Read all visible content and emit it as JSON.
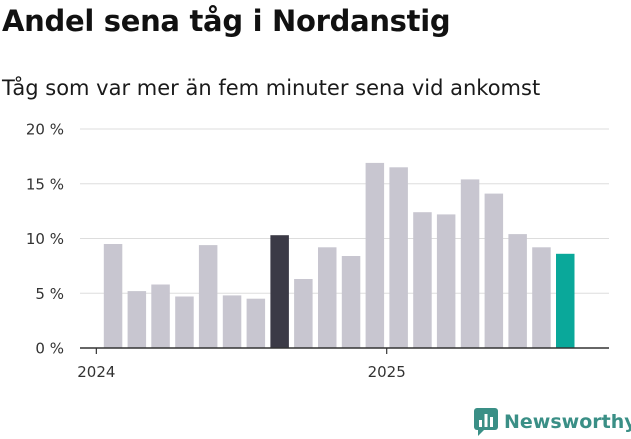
{
  "title": "Andel sena tåg i Nordanstig",
  "subtitle": "Tåg som var mer än fem minuter sena vid ankomst",
  "brand": "Newsworthy",
  "colors": {
    "bar": "#c8c6d0",
    "highlight_dark": "#3b3a46",
    "highlight_teal": "#0aa89a",
    "grid": "#dddddd",
    "axis": "#333333",
    "brand": "#3a8f86"
  },
  "chart_data": {
    "type": "bar",
    "title": "Andel sena tåg i Nordanstig",
    "subtitle": "Tåg som var mer än fem minuter sena vid ankomst",
    "xlabel": "",
    "ylabel": "",
    "ylim": [
      0,
      20
    ],
    "yticks": [
      0,
      5,
      10,
      15,
      20
    ],
    "ytick_labels": [
      "0 %",
      "5 %",
      "10 %",
      "15 %",
      "20 %"
    ],
    "xtick_labels": [
      {
        "label": "2024",
        "index": -0.7
      },
      {
        "label": "2025",
        "index": 11.5
      }
    ],
    "grid": true,
    "values": [
      9.5,
      5.2,
      5.8,
      4.7,
      9.4,
      4.8,
      4.5,
      10.3,
      6.3,
      9.2,
      8.4,
      16.9,
      16.5,
      12.4,
      12.2,
      15.4,
      14.1,
      10.4,
      9.2,
      8.6
    ],
    "highlight": {
      "7": "dark",
      "19": "teal"
    }
  }
}
